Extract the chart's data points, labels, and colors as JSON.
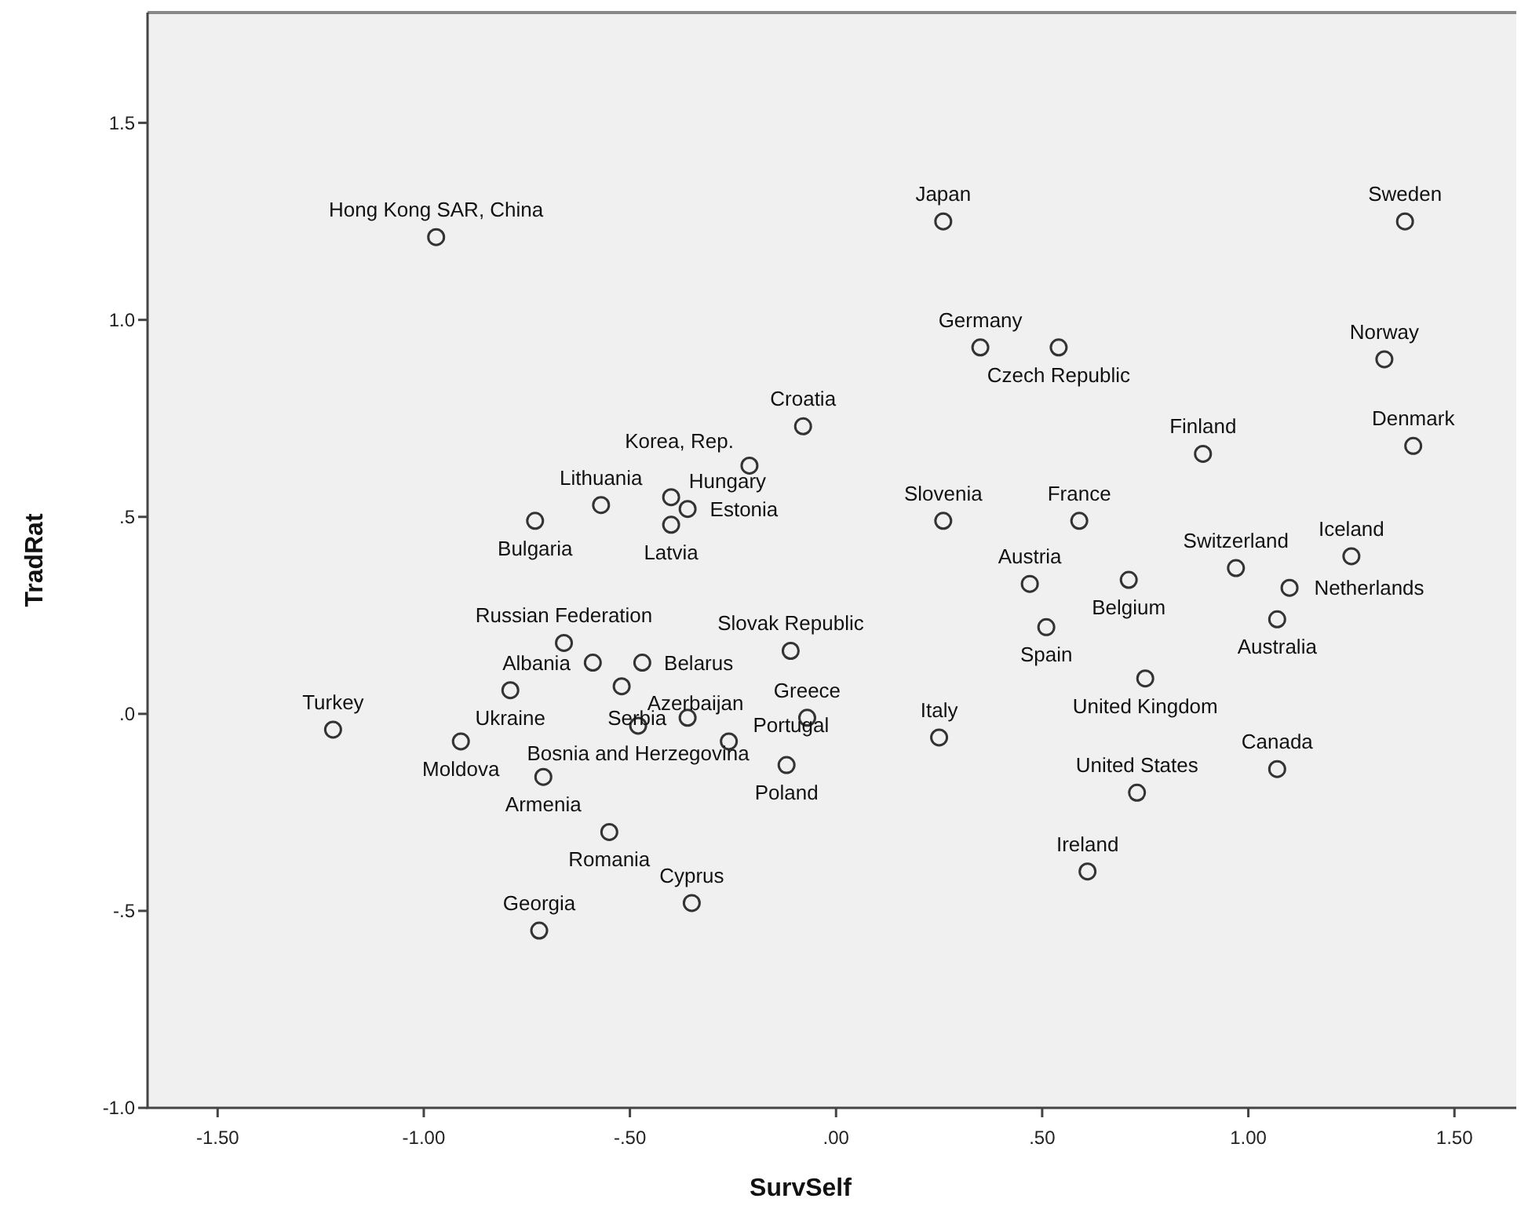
{
  "chart_data": {
    "type": "scatter",
    "xlabel": "SurvSelf",
    "ylabel": "TradRat",
    "xlim": [
      -1.67,
      1.65
    ],
    "ylim": [
      -1.0,
      1.78
    ],
    "xticks": [
      {
        "value": -1.5,
        "label": "-1.50"
      },
      {
        "value": -1.0,
        "label": "-1.00"
      },
      {
        "value": -0.5,
        "label": "-.50"
      },
      {
        "value": 0,
        "label": ".00"
      },
      {
        "value": 0.5,
        "label": ".50"
      },
      {
        "value": 1.0,
        "label": "1.00"
      },
      {
        "value": 1.5,
        "label": "1.50"
      }
    ],
    "yticks": [
      {
        "value": -1.0,
        "label": "-1.0"
      },
      {
        "value": -0.5,
        "label": "-.5"
      },
      {
        "value": 0,
        "label": ".0"
      },
      {
        "value": 0.5,
        "label": ".5"
      },
      {
        "value": 1.0,
        "label": "1.0"
      },
      1.5
    ],
    "grid": false,
    "marker": "circle",
    "data_labels": false,
    "series": [
      {
        "color": "#333333",
        "x": [
          -0.97,
          0.26,
          1.38,
          0.35,
          1.33,
          0.54,
          -0.08,
          0.89,
          1.4,
          -0.57,
          -0.4,
          -0.21,
          0.26,
          0.59,
          0.97,
          1.25,
          -0.73,
          -0.4,
          -0.36,
          0.47,
          0.71,
          1.1,
          -0.66,
          -0.59,
          -0.47,
          -0.11,
          0.51,
          0.75,
          1.07,
          -0.79,
          -0.52,
          -0.48,
          -1.22,
          -0.36,
          0.25,
          1.07,
          -0.91,
          -0.07,
          -0.26,
          0.73,
          -0.12,
          -0.71,
          -0.55,
          0.61,
          -0.35,
          -0.72
        ],
        "values": [
          1.21,
          1.25,
          1.25,
          0.93,
          0.9,
          0.93,
          0.73,
          0.66,
          0.68,
          0.53,
          0.55,
          0.63,
          0.49,
          0.49,
          0.37,
          0.4,
          0.49,
          0.48,
          0.52,
          0.33,
          0.34,
          0.32,
          0.18,
          0.13,
          0.13,
          0.16,
          0.22,
          0.09,
          0.24,
          0.06,
          0.07,
          -0.03,
          -0.04,
          -0.01,
          -0.06,
          -0.14,
          -0.07,
          -0.01,
          -0.07,
          -0.2,
          -0.13,
          -0.16,
          -0.3,
          -0.4,
          -0.48,
          -0.55
        ],
        "value_labels": [
          "Hong Kong SAR, China",
          "Japan",
          "Sweden",
          "Germany",
          "Norway",
          "Czech Republic",
          "Croatia",
          "Finland",
          "Denmark",
          "Lithuania",
          "Hungary",
          "Korea, Rep.",
          "Slovenia",
          "France",
          "Switzerland",
          "Iceland",
          "Bulgaria",
          "Latvia",
          "Estonia",
          "Austria",
          "Belgium",
          "Netherlands",
          "Russian Federation",
          "Albania",
          "Belarus",
          "Slovak Republic",
          "Spain",
          "United Kingdom",
          "Australia",
          "Ukraine",
          "Azerbaijan",
          "Bosnia and Herzegovina",
          "Turkey",
          "Serbia",
          "Italy",
          "Canada",
          "Moldova",
          "Greece",
          "Portugal",
          "United States",
          "Poland",
          "Armenia",
          "Romania",
          "Ireland",
          "Cyprus",
          "Georgia"
        ]
      }
    ]
  }
}
